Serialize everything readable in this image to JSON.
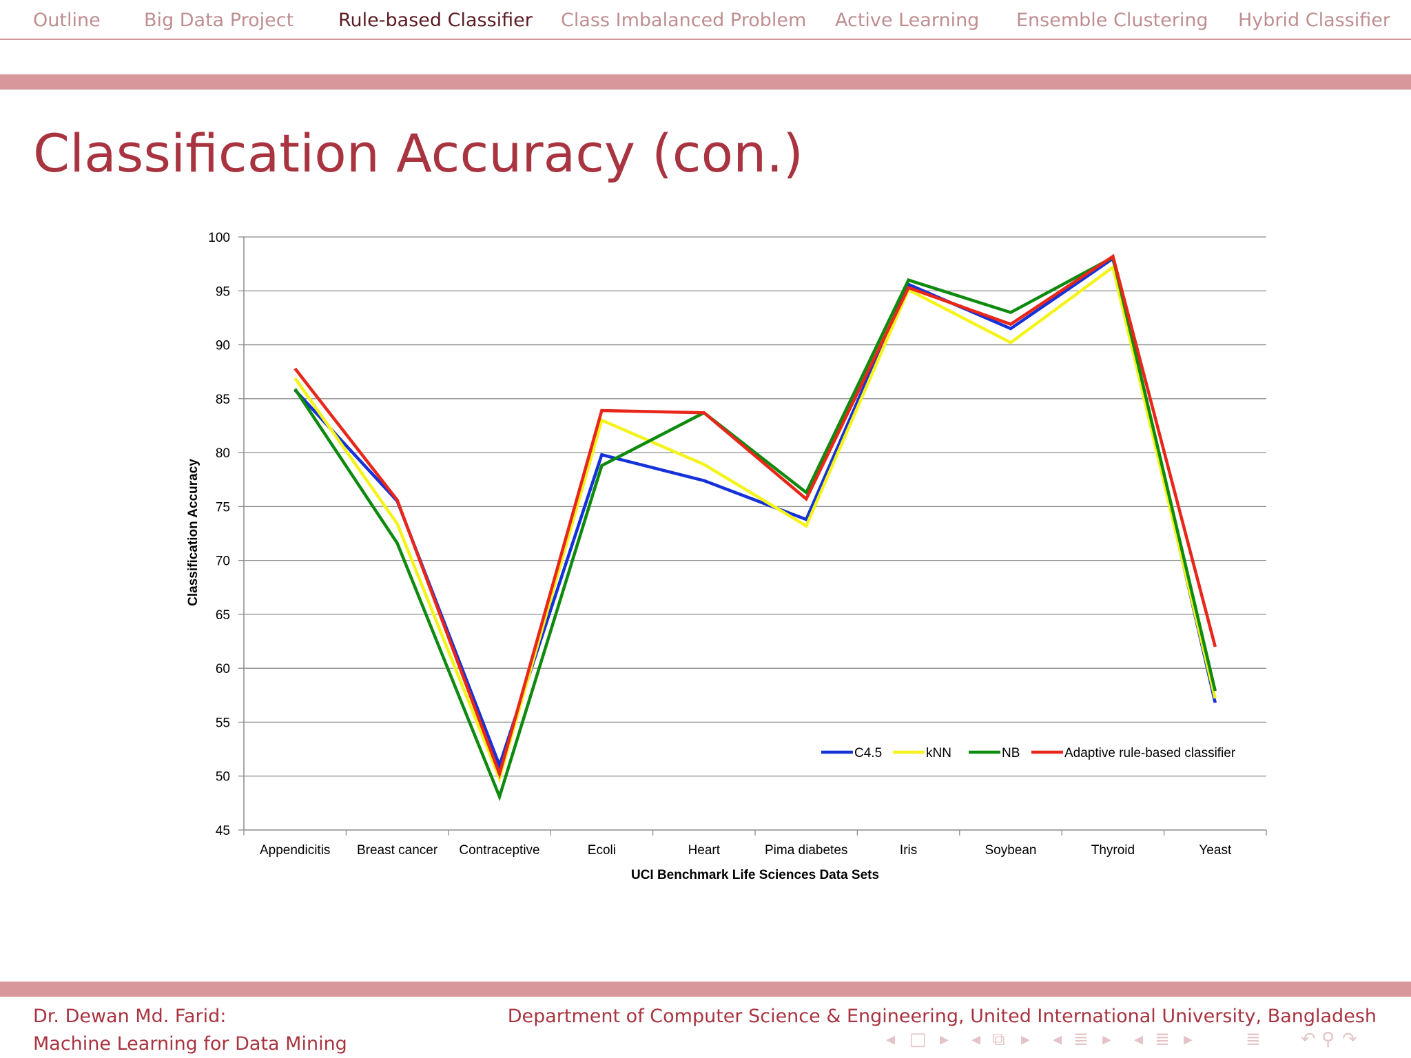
{
  "nav": {
    "items": [
      {
        "label": "Outline",
        "active": false
      },
      {
        "label": "Big Data Project",
        "active": false
      },
      {
        "label": "Rule-based Classifier",
        "active": true
      },
      {
        "label": "Class Imbalanced Problem",
        "active": false
      },
      {
        "label": "Active Learning",
        "active": false
      },
      {
        "label": "Ensemble Clustering",
        "active": false
      },
      {
        "label": "Hybrid Classifier",
        "active": false
      }
    ]
  },
  "slide": {
    "title": "Classification Accuracy (con.)"
  },
  "footer": {
    "author": "Dr. Dewan Md. Farid:",
    "course": "Machine Learning for Data Mining",
    "department": "Department of Computer Science & Engineering, United International University, Bangladesh"
  },
  "colors": {
    "accent": "#a83440",
    "band": "#d8979b",
    "c45": "#1432d8",
    "knn": "#f4f41c",
    "nb": "#0e8a0e",
    "adaptive": "#e8261a"
  },
  "chart_data": {
    "type": "line",
    "title": "",
    "xlabel": "UCI Benchmark Life Sciences Data Sets",
    "ylabel": "Classification Accuracy",
    "ylim": [
      45,
      100
    ],
    "yticks": [
      45,
      50,
      55,
      60,
      65,
      70,
      75,
      80,
      85,
      90,
      95,
      100
    ],
    "grid": true,
    "legend_position": "bottom-right",
    "categories": [
      "Appendicitis",
      "Breast cancer",
      "Contraceptive",
      "Ecoli",
      "Heart",
      "Pima diabetes",
      "Iris",
      "Soybean",
      "Thyroid",
      "Yeast"
    ],
    "series": [
      {
        "name": "C4.5",
        "color": "#1432d8",
        "values": [
          85.8,
          75.5,
          51.0,
          79.8,
          77.4,
          73.8,
          95.6,
          91.5,
          98.0,
          56.8
        ]
      },
      {
        "name": "kNN",
        "color": "#f4f41c",
        "values": [
          86.9,
          73.4,
          49.8,
          83.0,
          78.9,
          73.2,
          95.1,
          90.2,
          97.2,
          57.2
        ]
      },
      {
        "name": "NB",
        "color": "#0e8a0e",
        "values": [
          85.9,
          71.6,
          48.1,
          78.8,
          83.7,
          76.3,
          96.0,
          93.0,
          98.1,
          57.9
        ]
      },
      {
        "name": "Adaptive rule-based classifier",
        "color": "#e8261a",
        "values": [
          87.8,
          75.6,
          50.2,
          83.9,
          83.7,
          75.7,
          95.3,
          91.9,
          98.2,
          62.0
        ]
      }
    ]
  }
}
